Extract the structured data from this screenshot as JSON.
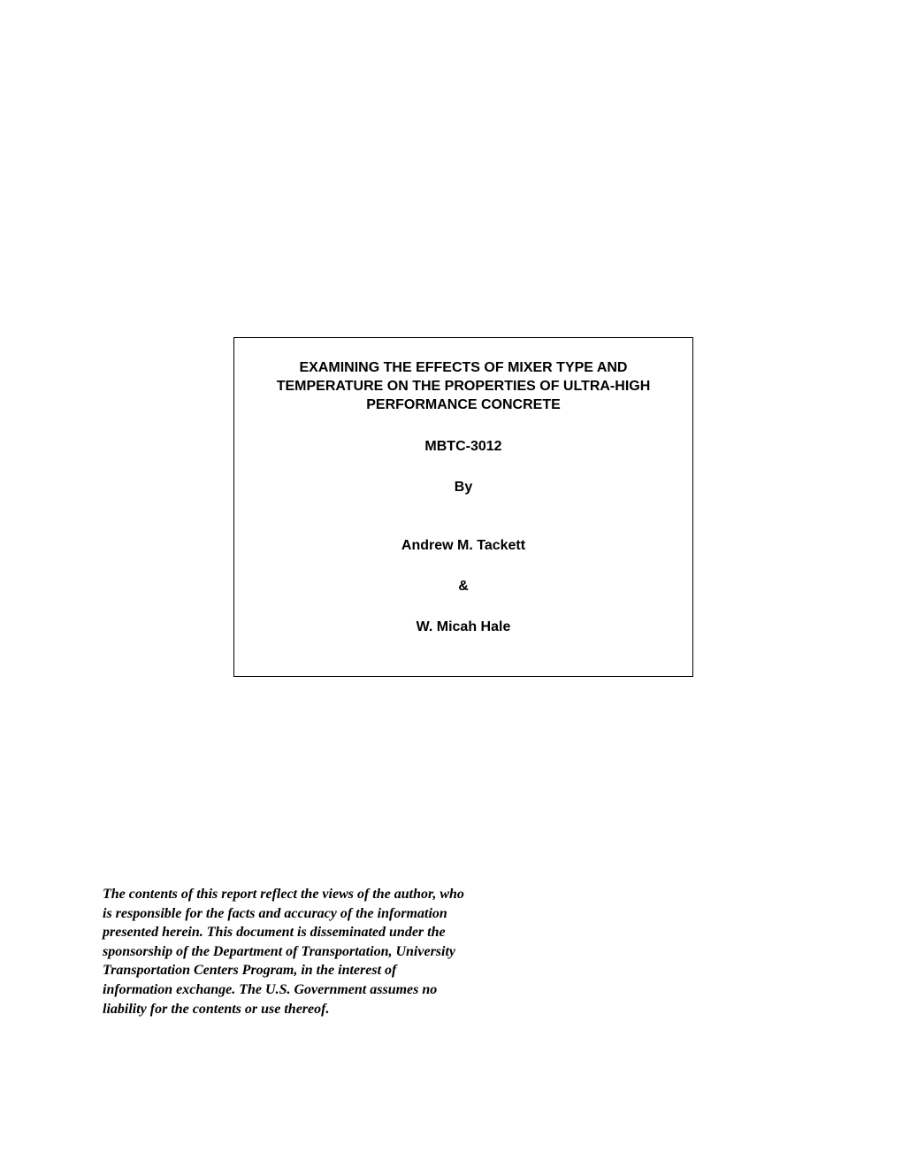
{
  "titleBox": {
    "titleLine1": "EXAMINING THE EFFECTS OF MIXER TYPE AND",
    "titleLine2": "TEMPERATURE ON THE PROPERTIES OF ULTRA-HIGH",
    "titleLine3": "PERFORMANCE CONCRETE",
    "reportId": "MBTC-3012",
    "byLabel": "By",
    "author1": "Andrew M. Tackett",
    "ampersand": "&",
    "author2": "W. Micah Hale"
  },
  "disclaimer": {
    "text": "The contents of this report reflect the views of the author, who is responsible for the facts and accuracy of the information presented herein. This document is disseminated under the sponsorship of the Department of Transportation, University Transportation Centers Program, in the interest of information exchange. The U.S. Government assumes no liability for the contents or use thereof."
  },
  "styling": {
    "pageWidth": 1020,
    "pageHeight": 1320,
    "backgroundColor": "#ffffff",
    "textColor": "#000000",
    "borderColor": "#000000",
    "titleFontFamily": "Arial",
    "titleFontSize": 16,
    "titleFontWeight": "bold",
    "disclaimerFontFamily": "Times New Roman",
    "disclaimerFontSize": 16,
    "disclaimerFontWeight": "bold",
    "disclaimerFontStyle": "italic",
    "titleBoxLeft": 264,
    "titleBoxTop": 381,
    "titleBoxWidth": 520,
    "disclaimerLeft": 116,
    "disclaimerTop": 1000,
    "disclaimerWidth": 410
  }
}
